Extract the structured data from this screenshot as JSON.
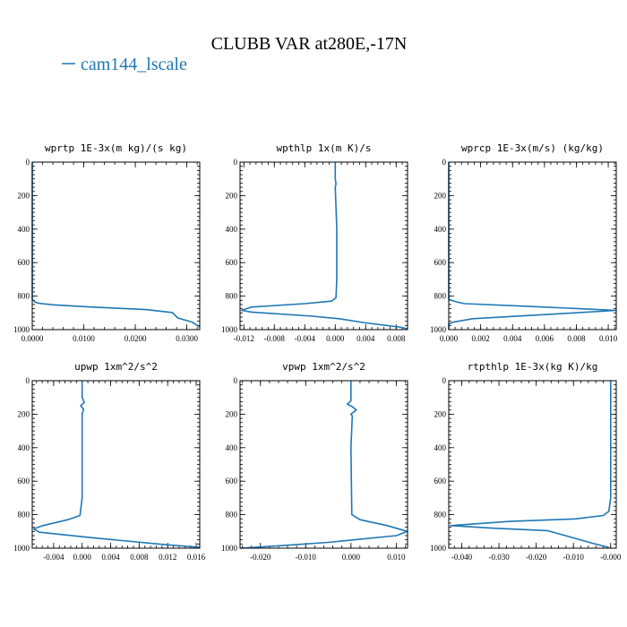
{
  "title": "CLUBB VAR at280E,-17N",
  "legend": {
    "label": "cam144_lscale",
    "color": "#1f77b4"
  },
  "chart_data": [
    {
      "type": "line",
      "title": "wprtp  1E-3x(m kg)/(s kg)",
      "xlim": [
        0,
        0.0325
      ],
      "ylim": [
        1000,
        0
      ],
      "xticks": [
        0,
        0.01,
        0.02,
        0.03
      ],
      "xtick_labels": [
        "0.0000",
        "0.0100",
        "0.0200",
        "0.0300"
      ],
      "yticks": [
        0,
        200,
        400,
        600,
        800,
        1000
      ],
      "ytick_labels": [
        "0",
        "200",
        "400",
        "600",
        "800",
        "1000"
      ],
      "series": [
        {
          "name": "cam144_lscale",
          "color": "#1f77b4",
          "x": [
            0,
            0,
            0,
            0,
            0.0005,
            0.0012,
            0.004,
            0.012,
            0.022,
            0.0272,
            0.0282,
            0.031,
            0.0325
          ],
          "y": [
            0,
            300,
            700,
            820,
            835,
            842,
            852,
            866,
            880,
            898,
            930,
            955,
            985
          ]
        }
      ]
    },
    {
      "type": "line",
      "title": "wpthlp  1x(m K)/s",
      "xlim": [
        -0.0125,
        0.0095
      ],
      "ylim": [
        1000,
        0
      ],
      "xticks": [
        -0.012,
        -0.008,
        -0.004,
        0,
        0.004,
        0.008
      ],
      "xtick_labels": [
        "-0.012",
        "-0.008",
        "-0.004",
        "0.000",
        "0.004",
        "0.008"
      ],
      "yticks": [
        0,
        200,
        400,
        600,
        800,
        1000
      ],
      "ytick_labels": [
        "0",
        "200",
        "400",
        "600",
        "800",
        "1000"
      ],
      "series": [
        {
          "name": "cam144_lscale",
          "color": "#1f77b4",
          "x": [
            0,
            0,
            0.0001,
            0,
            0.0002,
            0.0002,
            0.0001,
            -0.0005,
            -0.004,
            -0.011,
            -0.0123,
            -0.011,
            -0.003,
            0.0005,
            0.004,
            0.0085,
            0.0095
          ],
          "y": [
            0,
            100,
            130,
            150,
            400,
            700,
            810,
            830,
            845,
            865,
            885,
            895,
            920,
            935,
            960,
            985,
            995
          ]
        }
      ]
    },
    {
      "type": "line",
      "title": "wprcp  1E-3x(m/s) (kg/kg)",
      "xlim": [
        0,
        0.0105
      ],
      "ylim": [
        1000,
        0
      ],
      "xticks": [
        0,
        0.002,
        0.004,
        0.006,
        0.008,
        0.01
      ],
      "xtick_labels": [
        "0.000",
        "0.002",
        "0.004",
        "0.006",
        "0.008",
        "0.010"
      ],
      "yticks": [
        0,
        200,
        400,
        600,
        800,
        1000
      ],
      "ytick_labels": [
        "0",
        "200",
        "400",
        "600",
        "800",
        "1000"
      ],
      "series": [
        {
          "name": "cam144_lscale",
          "color": "#1f77b4",
          "x": [
            0,
            0,
            0.0005,
            0.001,
            0.0052,
            0.0105,
            0.007,
            0.0015,
            0.0003,
            0,
            0
          ],
          "y": [
            0,
            820,
            835,
            845,
            862,
            885,
            905,
            935,
            955,
            965,
            1000
          ]
        }
      ]
    },
    {
      "type": "line",
      "title": "upwp  1xm^2/s^2",
      "xlim": [
        -0.007,
        0.0165
      ],
      "ylim": [
        1000,
        0
      ],
      "xticks": [
        -0.004,
        0,
        0.004,
        0.008,
        0.012,
        0.016
      ],
      "xtick_labels": [
        "-0.004",
        "0.000",
        "0.004",
        "0.008",
        "0.012",
        "0.016"
      ],
      "yticks": [
        0,
        200,
        400,
        600,
        800,
        1000
      ],
      "ytick_labels": [
        "0",
        "200",
        "400",
        "600",
        "800",
        "1000"
      ],
      "series": [
        {
          "name": "cam144_lscale",
          "color": "#1f77b4",
          "x": [
            0,
            0,
            0.0003,
            -0.0002,
            0.0002,
            0,
            0,
            0,
            -0.0003,
            -0.002,
            -0.0055,
            -0.0068,
            -0.006,
            0.002,
            0.012,
            0.0165
          ],
          "y": [
            0,
            100,
            130,
            150,
            170,
            200,
            400,
            700,
            805,
            830,
            865,
            885,
            905,
            940,
            980,
            995
          ]
        }
      ]
    },
    {
      "type": "line",
      "title": "vpwp  1xm^2/s^2",
      "xlim": [
        -0.0245,
        0.0125
      ],
      "ylim": [
        1000,
        0
      ],
      "xticks": [
        -0.02,
        -0.01,
        0,
        0.01
      ],
      "xtick_labels": [
        "-0.020",
        "-0.010",
        "0.000",
        "0.010"
      ],
      "yticks": [
        0,
        200,
        400,
        600,
        800,
        1000
      ],
      "ytick_labels": [
        "0",
        "200",
        "400",
        "600",
        "800",
        "1000"
      ],
      "series": [
        {
          "name": "cam144_lscale",
          "color": "#1f77b4",
          "x": [
            0,
            0,
            -0.0008,
            0.0003,
            0.0012,
            0,
            0.0003,
            0,
            0.0002,
            0.002,
            0.008,
            0.0125,
            0.01,
            -0.005,
            -0.018,
            -0.0245
          ],
          "y": [
            0,
            120,
            140,
            155,
            175,
            200,
            210,
            400,
            800,
            830,
            865,
            900,
            925,
            965,
            990,
            1000
          ]
        }
      ]
    },
    {
      "type": "line",
      "title": "rtpthlp  1E-3x(kg K)/kg",
      "xlim": [
        -0.0435,
        0.0015
      ],
      "ylim": [
        1000,
        0
      ],
      "xticks": [
        -0.04,
        -0.03,
        -0.02,
        -0.01,
        0
      ],
      "xtick_labels": [
        "-0.040",
        "-0.030",
        "-0.020",
        "-0.010",
        "-0.000"
      ],
      "yticks": [
        0,
        200,
        400,
        600,
        800,
        1000
      ],
      "ytick_labels": [
        "0",
        "200",
        "400",
        "600",
        "800",
        "1000"
      ],
      "series": [
        {
          "name": "cam144_lscale",
          "color": "#1f77b4",
          "x": [
            0,
            0,
            -0.0005,
            -0.002,
            -0.0095,
            -0.027,
            -0.043,
            -0.032,
            -0.017,
            -0.013,
            -0.005,
            -0.0005
          ],
          "y": [
            0,
            700,
            780,
            805,
            825,
            840,
            865,
            880,
            895,
            920,
            970,
            995
          ]
        }
      ]
    }
  ]
}
